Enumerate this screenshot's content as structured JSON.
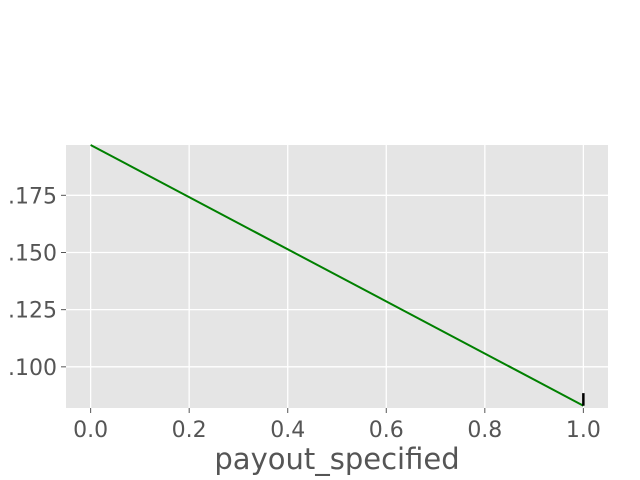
{
  "chart_data": {
    "type": "line",
    "title": "",
    "xlabel": "payout_specified",
    "ylabel": "",
    "xlim": [
      -0.05,
      1.05
    ],
    "ylim": [
      0.082,
      0.197
    ],
    "x_ticks": [
      0.0,
      0.2,
      0.4,
      0.6,
      0.8,
      1.0
    ],
    "x_tick_labels": [
      "0.0",
      "0.2",
      "0.4",
      "0.6",
      "0.8",
      "1.0"
    ],
    "y_ticks": [
      0.1,
      0.125,
      0.15,
      0.175
    ],
    "y_tick_labels": [
      ".100",
      ".125",
      ".150",
      ".175"
    ],
    "grid": true,
    "series": [
      {
        "x": [
          0.0,
          1.0
        ],
        "y": [
          0.197,
          0.083
        ],
        "color": "#008000"
      }
    ],
    "errorbars": [
      {
        "x": 1.0,
        "y_low": 0.083,
        "y_high": 0.0885,
        "color": "#000000"
      }
    ],
    "colors": {
      "plot_background": "#e5e5e5",
      "grid": "#ffffff",
      "text": "#555555",
      "line": "#008000"
    }
  }
}
